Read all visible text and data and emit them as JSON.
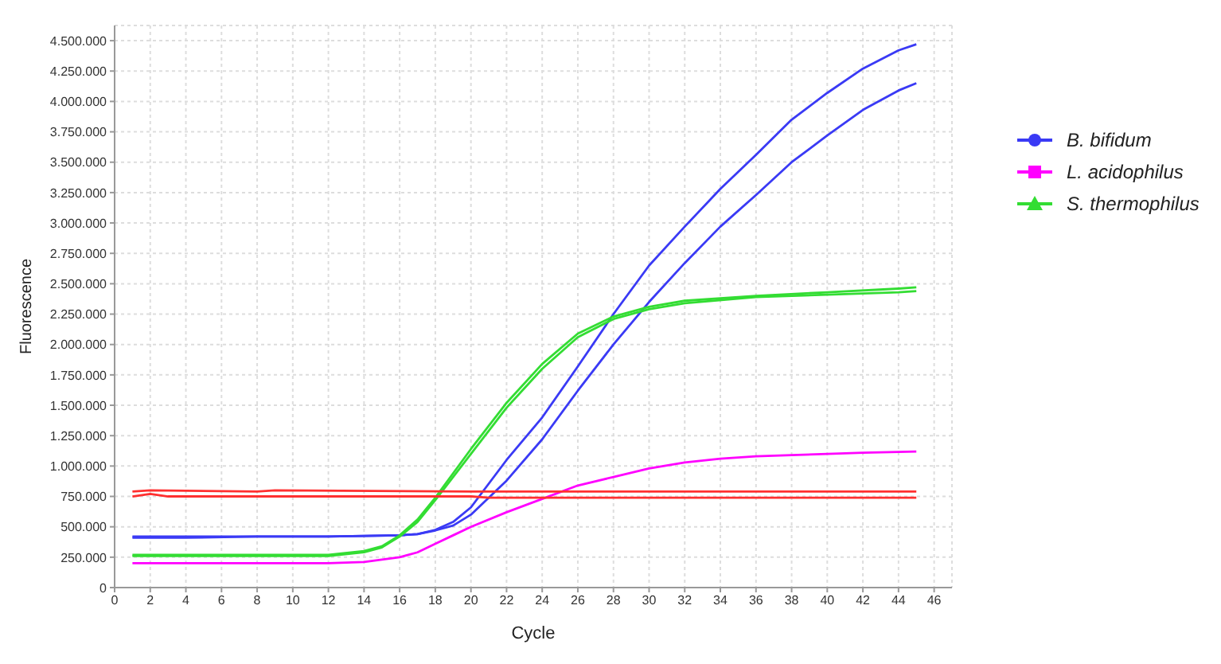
{
  "chart_data": {
    "type": "line",
    "xlabel": "Cycle",
    "ylabel": "Fluorescence",
    "xlim": [
      0,
      47
    ],
    "ylim": [
      0,
      4625000
    ],
    "xticks": [
      0,
      2,
      4,
      6,
      8,
      10,
      12,
      14,
      16,
      18,
      20,
      22,
      24,
      26,
      28,
      30,
      32,
      34,
      36,
      38,
      40,
      42,
      44,
      46
    ],
    "yticks": [
      0,
      {
        "value": 250000,
        "label": "250.000"
      },
      {
        "value": 500000,
        "label": "500.000"
      },
      {
        "value": 750000,
        "label": "750.000"
      },
      {
        "value": 1000000,
        "label": "1.000.000"
      },
      {
        "value": 1250000,
        "label": "1.250.000"
      },
      {
        "value": 1500000,
        "label": "1.500.000"
      },
      {
        "value": 1750000,
        "label": "1.750.000"
      },
      {
        "value": 2000000,
        "label": "2.000.000"
      },
      {
        "value": 2250000,
        "label": "2.250.000"
      },
      {
        "value": 2500000,
        "label": "2.500.000"
      },
      {
        "value": 2750000,
        "label": "2.750.000"
      },
      {
        "value": 3000000,
        "label": "3.000.000"
      },
      {
        "value": 3250000,
        "label": "3.250.000"
      },
      {
        "value": 3500000,
        "label": "3.500.000"
      },
      {
        "value": 3750000,
        "label": "3.750.000"
      },
      {
        "value": 4000000,
        "label": "4.000.000"
      },
      {
        "value": 4250000,
        "label": "4.250.000"
      },
      {
        "value": 4500000,
        "label": "4.500.000"
      }
    ],
    "grid": true,
    "legend": "right",
    "marker": "none",
    "line_style": "solid",
    "series": [
      {
        "name": "B. bifidum",
        "color": "#3a3af5",
        "x": [
          1,
          4,
          8,
          12,
          16,
          17,
          18,
          19,
          20,
          22,
          24,
          26,
          28,
          30,
          32,
          34,
          36,
          38,
          40,
          42,
          44,
          45
        ],
        "values": [
          420000,
          420000,
          420000,
          420000,
          430000,
          440000,
          475000,
          540000,
          660000,
          1050000,
          1400000,
          1820000,
          2250000,
          2650000,
          2970000,
          3280000,
          3560000,
          3850000,
          4070000,
          4270000,
          4420000,
          4470000
        ]
      },
      {
        "color": "#3a3af5",
        "x": [
          1,
          4,
          8,
          12,
          16,
          17,
          18,
          19,
          20,
          22,
          24,
          26,
          28,
          30,
          32,
          34,
          36,
          38,
          40,
          42,
          44,
          45
        ],
        "values": [
          410000,
          410000,
          420000,
          420000,
          430000,
          440000,
          470000,
          510000,
          600000,
          880000,
          1220000,
          1620000,
          2000000,
          2350000,
          2670000,
          2970000,
          3230000,
          3500000,
          3720000,
          3930000,
          4090000,
          4150000
        ]
      },
      {
        "name": "L. acidophilus",
        "color": "#ff00ff",
        "x": [
          1,
          4,
          8,
          12,
          14,
          16,
          17,
          18,
          19,
          20,
          22,
          24,
          26,
          28,
          30,
          32,
          34,
          36,
          38,
          40,
          42,
          45
        ],
        "values": [
          200000,
          200000,
          200000,
          200000,
          210000,
          250000,
          290000,
          360000,
          430000,
          500000,
          620000,
          730000,
          840000,
          910000,
          980000,
          1030000,
          1060000,
          1080000,
          1090000,
          1100000,
          1110000,
          1120000
        ]
      },
      {
        "name": "S. thermophilus",
        "color": "#33dd33",
        "x": [
          1,
          4,
          8,
          12,
          14,
          15,
          16,
          17,
          18,
          19,
          20,
          22,
          24,
          26,
          28,
          30,
          32,
          36,
          40,
          44,
          45
        ],
        "values": [
          270000,
          270000,
          270000,
          270000,
          300000,
          340000,
          430000,
          560000,
          740000,
          940000,
          1140000,
          1520000,
          1840000,
          2090000,
          2230000,
          2310000,
          2360000,
          2400000,
          2430000,
          2460000,
          2470000
        ]
      },
      {
        "color": "#33dd33",
        "x": [
          1,
          4,
          8,
          12,
          14,
          15,
          16,
          17,
          18,
          19,
          20,
          22,
          24,
          26,
          28,
          30,
          32,
          36,
          40,
          44,
          45
        ],
        "values": [
          260000,
          260000,
          260000,
          260000,
          290000,
          330000,
          420000,
          540000,
          720000,
          910000,
          1100000,
          1480000,
          1800000,
          2060000,
          2210000,
          2290000,
          2340000,
          2390000,
          2410000,
          2430000,
          2440000
        ]
      },
      {
        "color": "#ff3030",
        "x": [
          1,
          2,
          8,
          9,
          20,
          45
        ],
        "values": [
          790000,
          800000,
          790000,
          800000,
          790000,
          790000
        ]
      },
      {
        "color": "#ff3030",
        "x": [
          1,
          2,
          3,
          20,
          21,
          45
        ],
        "values": [
          750000,
          770000,
          750000,
          750000,
          740000,
          740000
        ]
      }
    ]
  }
}
